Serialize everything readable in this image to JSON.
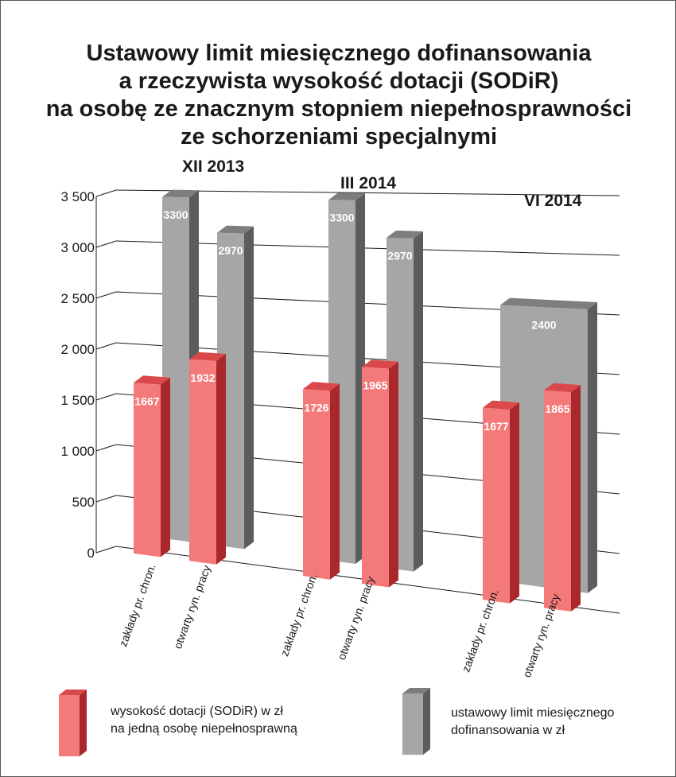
{
  "chart_data": {
    "type": "bar",
    "title": [
      "Ustawowy limit miesięcznego dofinansowania",
      "a rzeczywista wysokość dotacji (SODiR)",
      "na osobę ze znacznym stopniem niepełnosprawności",
      "ze schorzeniami specjalnymi"
    ],
    "periods": [
      "XII 2013",
      "III 2014",
      "VI 2014"
    ],
    "categories": [
      "zakłady pr. chron.",
      "otwarty ryn. pracy",
      "zakłady pr. chron.",
      "otwarty ryn. pracy",
      "zakłady pr. chron.",
      "otwarty ryn. pracy"
    ],
    "y_ticks": [
      "0",
      "500",
      "1 000",
      "1 500",
      "2 000",
      "2 500",
      "3 000",
      "3 500"
    ],
    "ylim": [
      0,
      3500
    ],
    "grid": true,
    "legend_position": "bottom",
    "series": [
      {
        "name": "wysokość dotacji (SODiR) w zł na jedną osobę niepełnosprawną",
        "legend_lines": [
          "wysokość dotacji (SODiR) w zł",
          "na jedną osobę niepełnosprawną"
        ],
        "color": "#f47a7a",
        "values": [
          1667,
          1932,
          1726,
          1965,
          1677,
          1865
        ]
      },
      {
        "name": "ustawowy limit miesięcznego dofinansowania w zł",
        "legend_lines": [
          "ustawowy limit miesięcznego",
          "dofinansowania w zł"
        ],
        "color": "#a6a6a6",
        "values": [
          3300,
          2970,
          3300,
          2970,
          2400,
          2400
        ]
      }
    ]
  }
}
